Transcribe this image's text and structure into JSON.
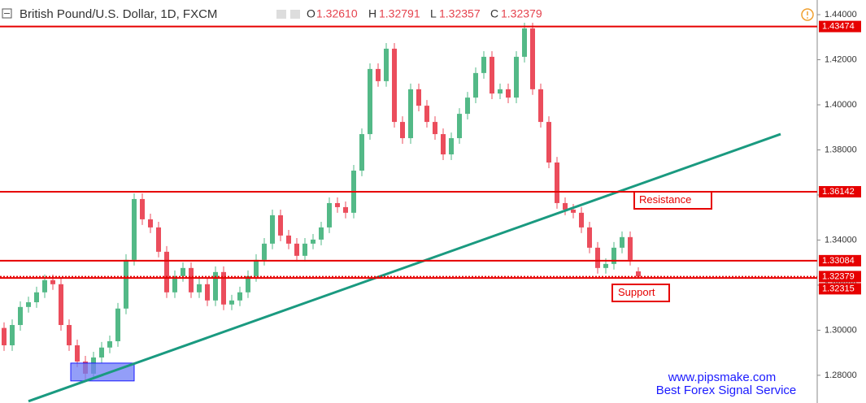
{
  "chart_data": {
    "type": "candlestick",
    "header": {
      "title": "British Pound/U.S. Dollar, 1D, FXCM",
      "o_label": "O",
      "open": "1.32610",
      "h_label": "H",
      "high": "1.32791",
      "l_label": "L",
      "low": "1.32357",
      "c_label": "C",
      "close": "1.32379"
    },
    "xlim": [
      -0.5,
      100
    ],
    "ylim": [
      1.2677,
      1.4465
    ],
    "yticks": [
      {
        "value": 1.44,
        "label": "1.44000"
      },
      {
        "value": 1.42,
        "label": "1.42000"
      },
      {
        "value": 1.4,
        "label": "1.40000"
      },
      {
        "value": 1.38,
        "label": "1.38000"
      },
      {
        "value": 1.36,
        "label": "1.36000"
      },
      {
        "value": 1.34,
        "label": "1.34000"
      },
      {
        "value": 1.32,
        "label": "1.32000"
      },
      {
        "value": 1.3,
        "label": "1.30000"
      },
      {
        "value": 1.28,
        "label": "1.28000"
      }
    ],
    "up_color": "#53b987",
    "down_color": "#eb4d5c",
    "ohlc": [
      [
        1.301,
        1.3035,
        1.2908,
        1.2933
      ],
      [
        1.2933,
        1.3048,
        1.2908,
        1.3023
      ],
      [
        1.3023,
        1.3128,
        1.2998,
        1.3103
      ],
      [
        1.3103,
        1.3149,
        1.3078,
        1.3124
      ],
      [
        1.3124,
        1.3193,
        1.3099,
        1.3168
      ],
      [
        1.3168,
        1.3247,
        1.3143,
        1.3222
      ],
      [
        1.3222,
        1.3247,
        1.3179,
        1.3204
      ],
      [
        1.3204,
        1.3229,
        1.2998,
        1.3023
      ],
      [
        1.3023,
        1.3048,
        1.2908,
        1.2933
      ],
      [
        1.2933,
        1.2958,
        1.2836,
        1.2861
      ],
      [
        1.2861,
        1.2886,
        1.2782,
        1.2807
      ],
      [
        1.2807,
        1.2904,
        1.2782,
        1.2879
      ],
      [
        1.2879,
        1.2948,
        1.2854,
        1.2923
      ],
      [
        1.2923,
        1.2976,
        1.2898,
        1.2951
      ],
      [
        1.2951,
        1.3121,
        1.2926,
        1.3096
      ],
      [
        1.3096,
        1.3337,
        1.3071,
        1.3312
      ],
      [
        1.3312,
        1.3607,
        1.3287,
        1.3582
      ],
      [
        1.3582,
        1.3607,
        1.3467,
        1.3492
      ],
      [
        1.3492,
        1.3517,
        1.3431,
        1.3456
      ],
      [
        1.3456,
        1.3481,
        1.3323,
        1.3348
      ],
      [
        1.3348,
        1.3373,
        1.3143,
        1.3168
      ],
      [
        1.3168,
        1.3265,
        1.3143,
        1.324
      ],
      [
        1.324,
        1.3301,
        1.3215,
        1.3276
      ],
      [
        1.3276,
        1.3301,
        1.3143,
        1.3168
      ],
      [
        1.3168,
        1.3229,
        1.3143,
        1.3204
      ],
      [
        1.3204,
        1.3229,
        1.3107,
        1.3132
      ],
      [
        1.3132,
        1.3283,
        1.3107,
        1.3258
      ],
      [
        1.3258,
        1.3283,
        1.3089,
        1.3114
      ],
      [
        1.3114,
        1.3157,
        1.3089,
        1.3132
      ],
      [
        1.3132,
        1.3193,
        1.3107,
        1.3168
      ],
      [
        1.3168,
        1.3265,
        1.3143,
        1.324
      ],
      [
        1.324,
        1.3337,
        1.3215,
        1.3312
      ],
      [
        1.3312,
        1.3409,
        1.3287,
        1.3384
      ],
      [
        1.3384,
        1.3535,
        1.3359,
        1.351
      ],
      [
        1.351,
        1.3535,
        1.3395,
        1.342
      ],
      [
        1.342,
        1.3445,
        1.3359,
        1.3384
      ],
      [
        1.3384,
        1.3409,
        1.3305,
        1.333
      ],
      [
        1.333,
        1.3409,
        1.3305,
        1.3384
      ],
      [
        1.3384,
        1.3427,
        1.3359,
        1.3402
      ],
      [
        1.3402,
        1.3481,
        1.3377,
        1.3456
      ],
      [
        1.3456,
        1.3589,
        1.3431,
        1.3564
      ],
      [
        1.3564,
        1.3589,
        1.3521,
        1.3546
      ],
      [
        1.3546,
        1.3571,
        1.3496,
        1.3521
      ],
      [
        1.3521,
        1.3733,
        1.3496,
        1.3708
      ],
      [
        1.3708,
        1.3895,
        1.3683,
        1.387
      ],
      [
        1.387,
        1.4184,
        1.3845,
        1.4159
      ],
      [
        1.4159,
        1.4184,
        1.408,
        1.4105
      ],
      [
        1.4105,
        1.4274,
        1.408,
        1.4249
      ],
      [
        1.4249,
        1.4274,
        1.3899,
        1.3924
      ],
      [
        1.3924,
        1.3949,
        1.3827,
        1.3852
      ],
      [
        1.3852,
        1.4094,
        1.3827,
        1.4069
      ],
      [
        1.4069,
        1.4094,
        1.3971,
        1.3996
      ],
      [
        1.3996,
        1.4021,
        1.3899,
        1.3924
      ],
      [
        1.3924,
        1.3949,
        1.3845,
        1.387
      ],
      [
        1.387,
        1.3895,
        1.3755,
        1.378
      ],
      [
        1.378,
        1.3877,
        1.3755,
        1.3852
      ],
      [
        1.3852,
        1.3985,
        1.3827,
        1.396
      ],
      [
        1.396,
        1.4057,
        1.3935,
        1.4032
      ],
      [
        1.4032,
        1.4166,
        1.4007,
        1.4141
      ],
      [
        1.4141,
        1.4238,
        1.4116,
        1.4213
      ],
      [
        1.4213,
        1.4238,
        1.4025,
        1.405
      ],
      [
        1.405,
        1.4094,
        1.4025,
        1.4069
      ],
      [
        1.4069,
        1.4094,
        1.4007,
        1.4032
      ],
      [
        1.4032,
        1.4238,
        1.4007,
        1.4213
      ],
      [
        1.4213,
        1.4364,
        1.4188,
        1.4339
      ],
      [
        1.4339,
        1.4364,
        1.4044,
        1.4069
      ],
      [
        1.4069,
        1.4094,
        1.3899,
        1.3924
      ],
      [
        1.3924,
        1.3949,
        1.3719,
        1.3744
      ],
      [
        1.3744,
        1.3769,
        1.3539,
        1.3564
      ],
      [
        1.3564,
        1.3589,
        1.351,
        1.3535
      ],
      [
        1.3535,
        1.356,
        1.3496,
        1.3521
      ],
      [
        1.3521,
        1.3546,
        1.3431,
        1.3456
      ],
      [
        1.3456,
        1.3481,
        1.3341,
        1.3366
      ],
      [
        1.3366,
        1.3391,
        1.3251,
        1.3276
      ],
      [
        1.3276,
        1.3319,
        1.3251,
        1.3294
      ],
      [
        1.3294,
        1.3391,
        1.3269,
        1.3366
      ],
      [
        1.3366,
        1.3438,
        1.3341,
        1.3413
      ],
      [
        1.3413,
        1.3438,
        1.3287,
        1.3312
      ],
      [
        1.3261,
        1.32791,
        1.32357,
        1.32379
      ]
    ],
    "price_lines": [
      {
        "value": 1.43474,
        "label": "1.43474",
        "style": "solid"
      },
      {
        "value": 1.36142,
        "label": "1.36142",
        "style": "solid"
      },
      {
        "value": 1.33084,
        "label": "1.33084",
        "style": "solid"
      },
      {
        "value": 1.32379,
        "label": "1.32379",
        "style": "dotted"
      },
      {
        "value": 1.32315,
        "label": "1.32315",
        "style": "solid"
      }
    ],
    "line_color": "#e60000",
    "trendline": {
      "x": [
        3,
        95.5
      ],
      "y": [
        1.2685,
        1.387
      ],
      "color": "#1a9a80"
    },
    "zone": {
      "x": [
        8.2,
        16
      ],
      "y": [
        1.2775,
        1.2854
      ],
      "color": "#6f7df5"
    },
    "annotations": {
      "resistance": "Resistance",
      "support": "Support"
    },
    "watermark": {
      "site": "www.pipsmake.com",
      "slogan": "Best Forex Signal Service"
    }
  }
}
